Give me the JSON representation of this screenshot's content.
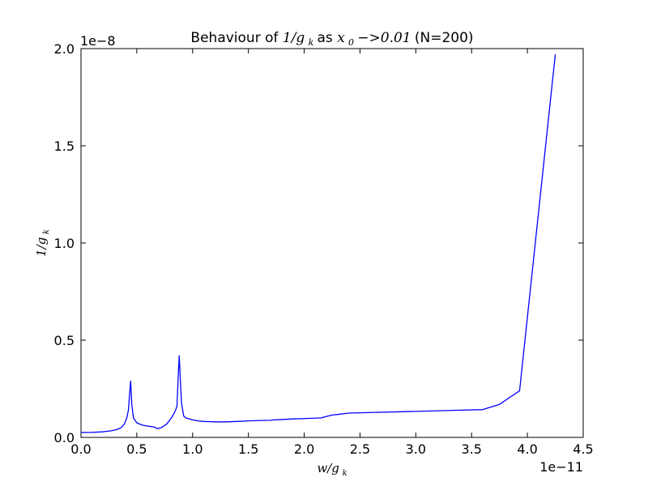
{
  "chart_data": {
    "type": "line",
    "title": {
      "prefix": "Behaviour of ",
      "expr1": "1/g",
      "expr1_sub": "k",
      "middle": " as ",
      "expr2": "x",
      "expr2_sub": "0",
      "expr2_rest": "−>0.01",
      "suffix": " (N=200)"
    },
    "xlabel": {
      "main": "w/g",
      "sub": "k"
    },
    "ylabel": {
      "main": "1/g",
      "sub": "k"
    },
    "x_offset_label": "1e−11",
    "y_offset_label": "1e−8",
    "xlim": [
      0.0,
      4.5
    ],
    "ylim": [
      0.0,
      2.0
    ],
    "x_ticks": [
      "0.0",
      "0.5",
      "1.0",
      "1.5",
      "2.0",
      "2.5",
      "3.0",
      "3.5",
      "4.0",
      "4.5"
    ],
    "y_ticks": [
      "0.0",
      "0.5",
      "1.0",
      "1.5",
      "2.0"
    ],
    "grid": false,
    "line_color": "#0000ff",
    "series": [
      {
        "x": [
          0.0,
          0.1,
          0.2,
          0.27,
          0.32,
          0.36,
          0.39,
          0.41,
          0.425,
          0.435,
          0.445,
          0.455,
          0.47,
          0.5,
          0.55,
          0.6,
          0.66,
          0.68,
          0.72,
          0.77,
          0.81,
          0.84,
          0.86,
          0.87,
          0.88,
          0.89,
          0.9,
          0.92,
          0.94,
          1.0,
          1.05,
          1.1,
          1.2,
          1.3,
          1.4,
          1.5,
          1.6,
          1.7,
          1.72,
          1.8,
          1.9,
          2.0,
          2.15,
          2.2,
          2.25,
          2.3,
          2.4,
          2.6,
          2.8,
          3.0,
          3.2,
          3.4,
          3.6,
          3.75,
          3.93,
          4.25
        ],
        "y": [
          0.025,
          0.026,
          0.029,
          0.034,
          0.04,
          0.05,
          0.07,
          0.1,
          0.14,
          0.22,
          0.29,
          0.17,
          0.1,
          0.075,
          0.063,
          0.058,
          0.053,
          0.045,
          0.05,
          0.07,
          0.1,
          0.13,
          0.16,
          0.3,
          0.42,
          0.3,
          0.18,
          0.11,
          0.1,
          0.09,
          0.085,
          0.082,
          0.08,
          0.08,
          0.082,
          0.085,
          0.087,
          0.088,
          0.09,
          0.092,
          0.095,
          0.097,
          0.1,
          0.108,
          0.115,
          0.118,
          0.125,
          0.128,
          0.131,
          0.134,
          0.137,
          0.14,
          0.143,
          0.17,
          0.24,
          1.97
        ]
      }
    ]
  }
}
